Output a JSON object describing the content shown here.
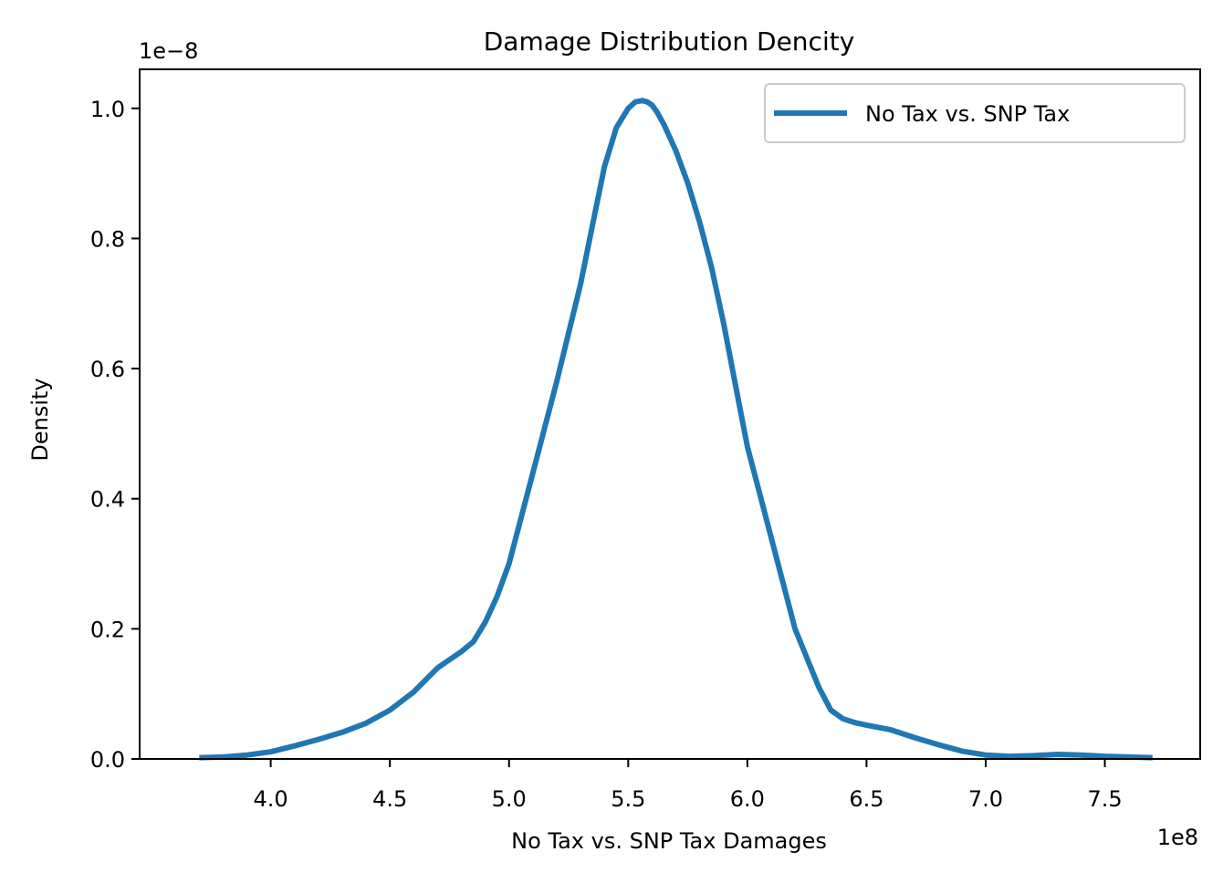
{
  "chart_data": {
    "type": "line",
    "title": "Damage Distribution Dencity",
    "xlabel": "No Tax vs. SNP Tax Damages",
    "ylabel": "Density",
    "x_offset_label": "1e8",
    "y_offset_label": "1e−8",
    "xlim": [
      3.45,
      7.9
    ],
    "ylim": [
      0.0,
      1.06
    ],
    "x_ticks": [
      4.0,
      4.5,
      5.0,
      5.5,
      6.0,
      6.5,
      7.0,
      7.5
    ],
    "x_tick_labels": [
      "4.0",
      "4.5",
      "5.0",
      "5.5",
      "6.0",
      "6.5",
      "7.0",
      "7.5"
    ],
    "y_ticks": [
      0.0,
      0.2,
      0.4,
      0.6,
      0.8,
      1.0
    ],
    "y_tick_labels": [
      "0.0",
      "0.2",
      "0.4",
      "0.6",
      "0.8",
      "1.0"
    ],
    "grid": false,
    "legend_position": "top-right",
    "series": [
      {
        "name": "No Tax vs. SNP Tax",
        "color": "#1f77b4",
        "x": [
          3.7,
          3.8,
          3.9,
          4.0,
          4.1,
          4.2,
          4.3,
          4.4,
          4.5,
          4.6,
          4.7,
          4.8,
          4.85,
          4.9,
          4.95,
          5.0,
          5.05,
          5.1,
          5.2,
          5.3,
          5.35,
          5.4,
          5.45,
          5.5,
          5.53,
          5.56,
          5.58,
          5.6,
          5.62,
          5.65,
          5.7,
          5.75,
          5.8,
          5.85,
          5.9,
          5.95,
          6.0,
          6.1,
          6.2,
          6.3,
          6.35,
          6.4,
          6.45,
          6.5,
          6.6,
          6.7,
          6.8,
          6.9,
          7.0,
          7.1,
          7.2,
          7.3,
          7.4,
          7.5,
          7.6,
          7.7
        ],
        "y": [
          0.002,
          0.003,
          0.006,
          0.011,
          0.02,
          0.03,
          0.041,
          0.055,
          0.075,
          0.103,
          0.14,
          0.165,
          0.18,
          0.21,
          0.25,
          0.3,
          0.37,
          0.44,
          0.58,
          0.73,
          0.82,
          0.91,
          0.97,
          1.0,
          1.01,
          1.012,
          1.01,
          1.005,
          0.995,
          0.975,
          0.935,
          0.885,
          0.825,
          0.755,
          0.67,
          0.575,
          0.48,
          0.34,
          0.2,
          0.11,
          0.075,
          0.062,
          0.056,
          0.052,
          0.045,
          0.033,
          0.022,
          0.012,
          0.006,
          0.004,
          0.005,
          0.007,
          0.006,
          0.004,
          0.003,
          0.002
        ]
      }
    ]
  }
}
